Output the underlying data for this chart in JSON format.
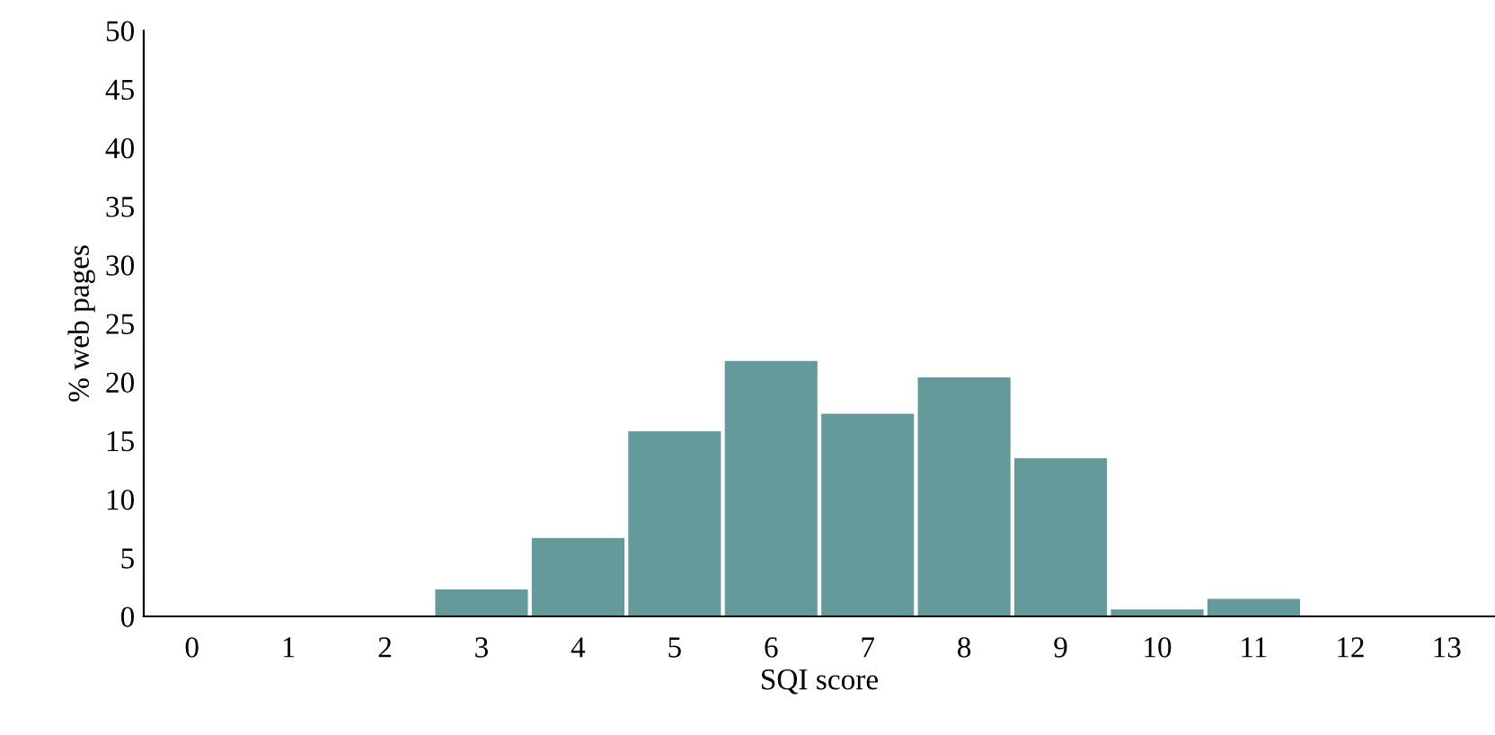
{
  "chart_data": {
    "type": "bar",
    "xlabel": "SQI score",
    "ylabel": "% web pages",
    "categories": [
      "0",
      "1",
      "2",
      "3",
      "4",
      "5",
      "6",
      "7",
      "8",
      "9",
      "10",
      "11",
      "12",
      "13"
    ],
    "values": [
      0,
      0,
      0,
      2.3,
      6.7,
      15.8,
      21.8,
      17.3,
      20.4,
      13.5,
      0.6,
      1.5,
      0,
      0
    ],
    "color": "#659a9a",
    "ylim": [
      0,
      50
    ],
    "yticks": [
      0,
      5,
      10,
      15,
      20,
      25,
      30,
      35,
      40,
      45,
      50
    ],
    "grid": false,
    "legend": false
  }
}
